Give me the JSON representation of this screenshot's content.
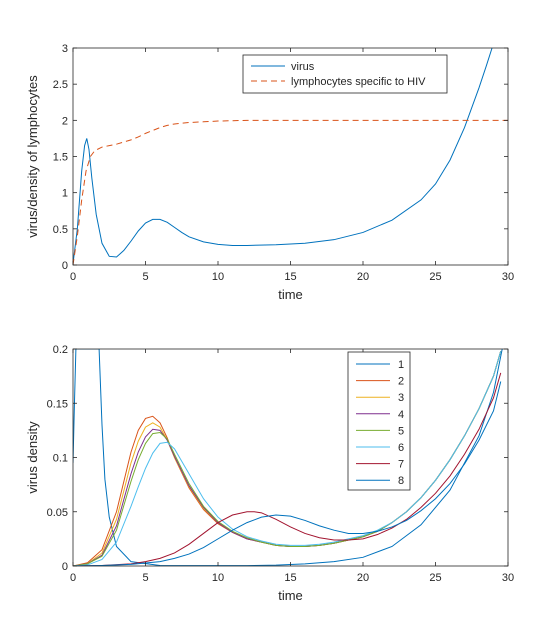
{
  "chart_data": [
    {
      "type": "line",
      "xlabel": "time",
      "ylabel": "virus/density of lymphocytes",
      "xlim": [
        0,
        30
      ],
      "ylim": [
        0,
        3
      ],
      "xticks": [
        "0",
        "5",
        "10",
        "15",
        "20",
        "25",
        "30"
      ],
      "yticks": [
        "0",
        "0.5",
        "1",
        "1.5",
        "2",
        "2.5",
        "3"
      ],
      "legend_position": "top-right",
      "series": [
        {
          "name": "virus",
          "color": "#0072BD",
          "style": "solid",
          "x": [
            0,
            0.3,
            0.6,
            0.8,
            0.95,
            1.1,
            1.3,
            1.6,
            2.0,
            2.5,
            3.0,
            3.5,
            4.0,
            4.5,
            5.0,
            5.5,
            6.0,
            6.5,
            7.0,
            7.5,
            8.0,
            9.0,
            10.0,
            11.0,
            12.0,
            14.0,
            16.0,
            18.0,
            20.0,
            22.0,
            24.0,
            25.0,
            26.0,
            27.0,
            28.0,
            28.5,
            28.9
          ],
          "y": [
            0.02,
            0.5,
            1.3,
            1.65,
            1.75,
            1.6,
            1.2,
            0.7,
            0.3,
            0.12,
            0.11,
            0.2,
            0.33,
            0.47,
            0.58,
            0.63,
            0.63,
            0.59,
            0.52,
            0.45,
            0.39,
            0.32,
            0.285,
            0.27,
            0.27,
            0.28,
            0.3,
            0.35,
            0.45,
            0.62,
            0.9,
            1.12,
            1.45,
            1.9,
            2.45,
            2.75,
            3.0
          ]
        },
        {
          "name": "lymphocytes specific to HIV",
          "color": "#D95319",
          "style": "dashed",
          "x": [
            0,
            0.3,
            0.6,
            0.9,
            1.2,
            1.5,
            2.0,
            2.5,
            3.0,
            3.5,
            4.0,
            4.5,
            5.0,
            5.5,
            6.0,
            6.5,
            7.0,
            8.0,
            9.0,
            10.0,
            12.0,
            15.0,
            20.0,
            25.0,
            30.0
          ],
          "y": [
            0.0,
            0.4,
            0.9,
            1.3,
            1.5,
            1.58,
            1.63,
            1.65,
            1.67,
            1.7,
            1.73,
            1.77,
            1.82,
            1.86,
            1.9,
            1.93,
            1.95,
            1.97,
            1.98,
            1.99,
            2.0,
            2.0,
            2.0,
            2.0,
            2.0
          ]
        }
      ]
    },
    {
      "type": "line",
      "xlabel": "time",
      "ylabel": "virus density",
      "xlim": [
        0,
        30
      ],
      "ylim": [
        0,
        0.2
      ],
      "xticks": [
        "0",
        "5",
        "10",
        "15",
        "20",
        "25",
        "30"
      ],
      "yticks": [
        "0",
        "0.05",
        "0.1",
        "0.15",
        "0.2"
      ],
      "legend_position": "top-right",
      "series": [
        {
          "name": "1",
          "color": "#0072BD",
          "x": [
            0,
            0.1,
            0.2,
            0.3,
            0.45,
            0.6,
            0.8,
            1.0,
            1.2,
            1.4,
            1.6,
            1.8,
            2.0,
            2.2,
            2.5,
            3.0,
            4.0,
            6.0,
            8.0,
            10.0,
            12.0,
            14.0,
            16.0,
            18.0,
            20.0,
            22.0,
            24.0,
            26.0,
            28.0,
            29.0,
            29.6
          ],
          "y": [
            0.095,
            0.15,
            0.2,
            0.2,
            0.2,
            0.2,
            0.2,
            0.2,
            0.2,
            0.2,
            0.2,
            0.2,
            0.13,
            0.08,
            0.045,
            0.018,
            0.004,
            0.0005,
            0.0003,
            0.0003,
            0.0004,
            0.0008,
            0.002,
            0.004,
            0.008,
            0.018,
            0.038,
            0.07,
            0.12,
            0.16,
            0.2
          ]
        },
        {
          "name": "2",
          "color": "#D95319",
          "x": [
            0,
            1,
            2,
            3,
            4,
            4.5,
            5,
            5.5,
            6,
            6.5,
            7,
            8,
            9,
            10,
            11,
            12,
            13,
            14,
            15,
            16,
            17,
            18,
            19,
            20,
            21,
            22,
            23,
            24,
            25,
            26,
            27,
            28,
            29,
            29.5
          ],
          "y": [
            0.0,
            0.003,
            0.015,
            0.05,
            0.105,
            0.125,
            0.136,
            0.138,
            0.132,
            0.118,
            0.1,
            0.072,
            0.052,
            0.039,
            0.031,
            0.025,
            0.022,
            0.019,
            0.018,
            0.018,
            0.019,
            0.021,
            0.024,
            0.027,
            0.032,
            0.04,
            0.05,
            0.063,
            0.079,
            0.098,
            0.12,
            0.145,
            0.175,
            0.198
          ]
        },
        {
          "name": "3",
          "color": "#EDB120",
          "x": [
            0,
            1,
            2,
            3,
            4,
            4.5,
            5,
            5.5,
            6,
            6.5,
            7,
            8,
            9,
            10,
            11,
            12,
            13,
            14,
            15,
            16,
            17,
            18,
            19,
            20,
            21,
            22,
            23,
            24,
            25,
            26,
            27,
            28,
            29,
            29.5
          ],
          "y": [
            0.0,
            0.002,
            0.012,
            0.043,
            0.095,
            0.115,
            0.128,
            0.132,
            0.128,
            0.116,
            0.1,
            0.073,
            0.053,
            0.04,
            0.031,
            0.025,
            0.022,
            0.019,
            0.018,
            0.018,
            0.019,
            0.021,
            0.024,
            0.027,
            0.032,
            0.04,
            0.05,
            0.063,
            0.079,
            0.098,
            0.12,
            0.145,
            0.175,
            0.198
          ]
        },
        {
          "name": "4",
          "color": "#7E2F8E",
          "x": [
            0,
            1,
            2,
            3,
            4,
            4.5,
            5,
            5.5,
            6,
            6.5,
            7,
            8,
            9,
            10,
            11,
            12,
            13,
            14,
            15,
            16,
            17,
            18,
            19,
            20,
            21,
            22,
            23,
            24,
            25,
            26,
            27,
            28,
            29,
            29.5
          ],
          "y": [
            0.0,
            0.002,
            0.01,
            0.037,
            0.085,
            0.105,
            0.119,
            0.126,
            0.125,
            0.116,
            0.101,
            0.074,
            0.054,
            0.04,
            0.031,
            0.025,
            0.022,
            0.019,
            0.018,
            0.018,
            0.019,
            0.021,
            0.024,
            0.027,
            0.032,
            0.04,
            0.05,
            0.063,
            0.079,
            0.098,
            0.12,
            0.145,
            0.175,
            0.198
          ]
        },
        {
          "name": "5",
          "color": "#77AC30",
          "x": [
            0,
            1,
            2,
            3,
            4,
            4.5,
            5,
            5.5,
            6,
            6.5,
            7,
            8,
            9,
            10,
            11,
            12,
            13,
            14,
            15,
            16,
            17,
            18,
            19,
            20,
            21,
            22,
            23,
            24,
            25,
            26,
            27,
            28,
            29,
            29.5
          ],
          "y": [
            0.0,
            0.002,
            0.009,
            0.033,
            0.078,
            0.098,
            0.113,
            0.122,
            0.123,
            0.117,
            0.103,
            0.076,
            0.055,
            0.041,
            0.032,
            0.026,
            0.022,
            0.019,
            0.018,
            0.018,
            0.019,
            0.021,
            0.024,
            0.027,
            0.032,
            0.04,
            0.05,
            0.063,
            0.079,
            0.098,
            0.12,
            0.145,
            0.175,
            0.198
          ]
        },
        {
          "name": "6",
          "color": "#4DBEEE",
          "x": [
            0,
            1,
            2,
            3,
            4,
            4.5,
            5,
            5.5,
            6,
            6.5,
            7,
            8,
            9,
            10,
            11,
            12,
            13,
            14,
            15,
            16,
            17,
            18,
            19,
            20,
            21,
            22,
            23,
            24,
            25,
            26,
            27,
            28,
            29,
            29.5
          ],
          "y": [
            0.0,
            0.001,
            0.006,
            0.022,
            0.055,
            0.073,
            0.09,
            0.104,
            0.113,
            0.114,
            0.108,
            0.085,
            0.062,
            0.045,
            0.034,
            0.027,
            0.023,
            0.02,
            0.019,
            0.019,
            0.02,
            0.022,
            0.025,
            0.028,
            0.033,
            0.04,
            0.05,
            0.063,
            0.079,
            0.098,
            0.12,
            0.145,
            0.175,
            0.198
          ]
        },
        {
          "name": "7",
          "color": "#A2142F",
          "x": [
            0,
            2,
            4,
            5,
            6,
            7,
            8,
            9,
            10,
            11,
            12,
            12.5,
            13,
            14,
            15,
            16,
            17,
            18,
            19,
            20,
            21,
            22,
            23,
            24,
            25,
            26,
            27,
            28,
            29,
            29.5
          ],
          "y": [
            0.0,
            0.0005,
            0.002,
            0.004,
            0.007,
            0.012,
            0.02,
            0.03,
            0.04,
            0.047,
            0.05,
            0.05,
            0.049,
            0.043,
            0.036,
            0.03,
            0.026,
            0.024,
            0.024,
            0.025,
            0.029,
            0.035,
            0.043,
            0.054,
            0.067,
            0.083,
            0.103,
            0.126,
            0.155,
            0.178
          ]
        },
        {
          "name": "8",
          "color": "#0072BD",
          "x": [
            0,
            2,
            4,
            6,
            7,
            8,
            9,
            10,
            11,
            12,
            13,
            14,
            15,
            16,
            17,
            18,
            19,
            20,
            21,
            22,
            23,
            24,
            25,
            26,
            27,
            28,
            29,
            29.5
          ],
          "y": [
            0.0,
            0.0005,
            0.0015,
            0.004,
            0.007,
            0.011,
            0.017,
            0.025,
            0.033,
            0.04,
            0.045,
            0.047,
            0.046,
            0.042,
            0.037,
            0.033,
            0.03,
            0.03,
            0.032,
            0.036,
            0.042,
            0.051,
            0.062,
            0.076,
            0.094,
            0.116,
            0.143,
            0.17
          ]
        }
      ]
    }
  ]
}
